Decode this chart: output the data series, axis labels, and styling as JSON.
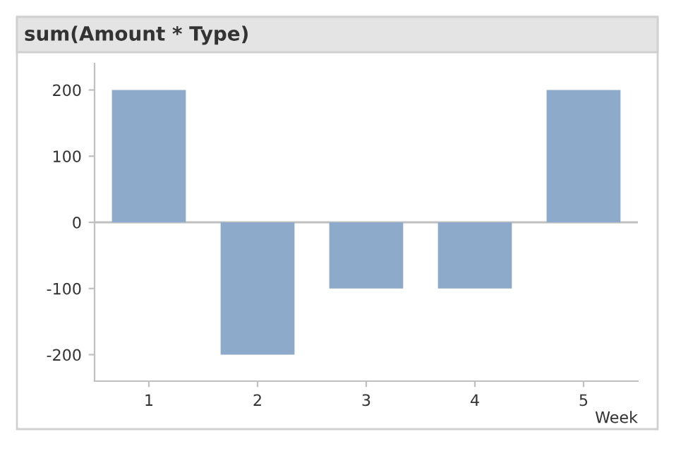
{
  "chart_data": {
    "type": "bar",
    "title": "sum(Amount * Type)",
    "xlabel": "Week",
    "categories": [
      "1",
      "2",
      "3",
      "4",
      "5"
    ],
    "values": [
      200,
      -200,
      -100,
      -100,
      200
    ],
    "color": "#8eaacb",
    "ylim": [
      -240,
      240
    ],
    "yticks": [
      -200,
      -100,
      0,
      100,
      200
    ],
    "ref_lines": [
      {
        "axis": "y",
        "value": 0,
        "color": "#c0c0c0"
      }
    ],
    "grid": false,
    "legend": false
  }
}
